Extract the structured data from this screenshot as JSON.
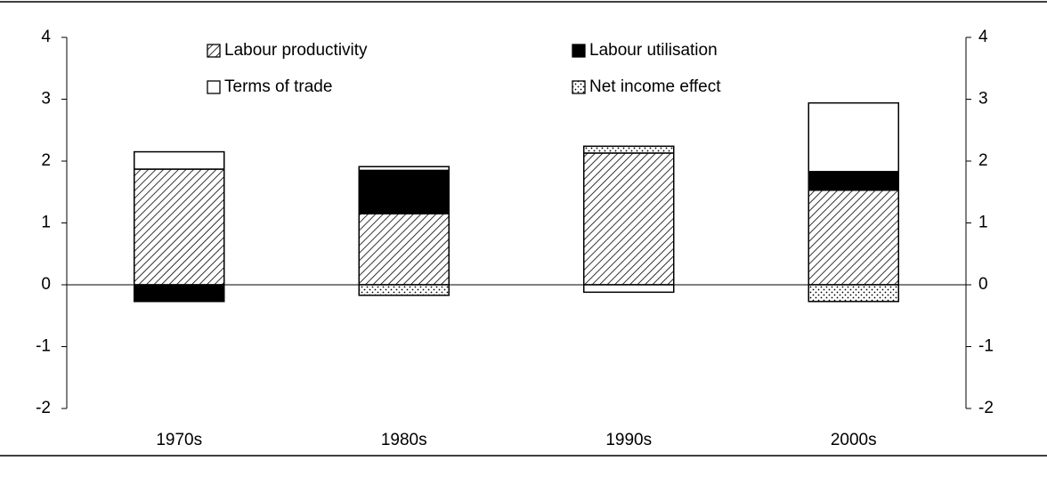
{
  "chart_data": {
    "type": "stacked_bar",
    "categories": [
      "1970s",
      "1980s",
      "1990s",
      "2000s"
    ],
    "series": [
      {
        "name": "Labour productivity",
        "color": "#000000",
        "pattern": "hatch",
        "values": [
          1.87,
          1.15,
          2.13,
          1.53
        ]
      },
      {
        "name": "Labour utilisation",
        "color": "#000000",
        "pattern": "solid",
        "values": [
          -0.27,
          0.7,
          0,
          0.3
        ]
      },
      {
        "name": "Terms of trade",
        "color": "#ffffff",
        "pattern": "solid",
        "values": [
          0.28,
          0.06,
          -0.12,
          1.11
        ]
      },
      {
        "name": "Net income effect",
        "color": "#000000",
        "pattern": "dots",
        "values": [
          0,
          -0.17,
          0.11,
          -0.27
        ]
      }
    ],
    "ylim": [
      -2,
      4
    ],
    "yticks": [
      -2,
      -1,
      0,
      1,
      2,
      3,
      4
    ],
    "y2lim": [
      -2,
      4
    ],
    "y2ticks": [
      -2,
      -1,
      0,
      1,
      2,
      3,
      4
    ],
    "legend": "top"
  }
}
